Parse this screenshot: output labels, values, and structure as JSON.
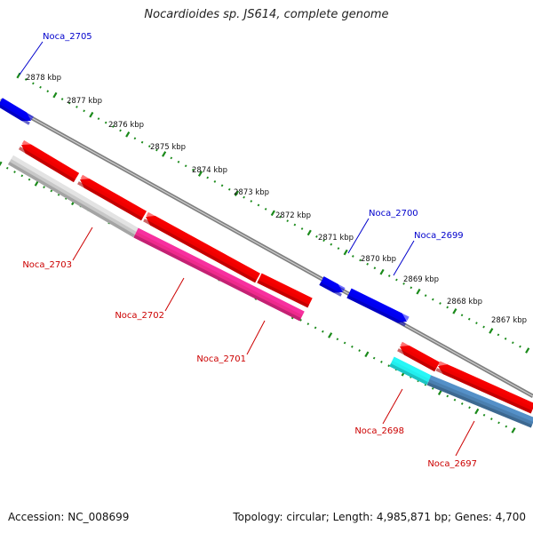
{
  "title": "Nocardioides sp. JS614, complete genome",
  "footer": {
    "accession": "Accession: NC_008699",
    "summary": "Topology: circular; Length: 4,985,871 bp; Genes: 4,700"
  },
  "colors": {
    "forward_gene": "#0000ee",
    "reverse_gene": "#ee0000",
    "backbone": "#808080",
    "tick_dots": "#1a8a1a",
    "label_forward": "#0000cc",
    "label_reverse": "#cc0000"
  },
  "ruler": {
    "units": "kbp",
    "ticks": [
      {
        "kbp": 2878,
        "label": "2878 kbp"
      },
      {
        "kbp": 2877,
        "label": "2877 kbp"
      },
      {
        "kbp": 2876,
        "label": "2876 kbp"
      },
      {
        "kbp": 2875,
        "label": "2875 kbp"
      },
      {
        "kbp": 2874,
        "label": "2874 kbp"
      },
      {
        "kbp": 2873,
        "label": "2873 kbp"
      },
      {
        "kbp": 2872,
        "label": "2872 kbp"
      },
      {
        "kbp": 2871,
        "label": "2871 kbp"
      },
      {
        "kbp": 2870,
        "label": "2870 kbp"
      },
      {
        "kbp": 2869,
        "label": "2869 kbp"
      },
      {
        "kbp": 2868,
        "label": "2868 kbp"
      },
      {
        "kbp": 2867,
        "label": "2867 kbp"
      }
    ]
  },
  "genes": [
    {
      "id": "Noca_2705",
      "strand": "forward",
      "color": "#0000ee",
      "labeled": true
    },
    {
      "id": "Noca_2700",
      "strand": "forward",
      "color": "#0000ee",
      "labeled": true
    },
    {
      "id": "Noca_2699",
      "strand": "forward",
      "color": "#0000ee",
      "labeled": true
    },
    {
      "id": "Noca_2703",
      "strand": "reverse",
      "color": "#ee0000",
      "labeled": true
    },
    {
      "id": "Noca_2702",
      "strand": "reverse",
      "color": "#ee0000",
      "labeled": true
    },
    {
      "id": "Noca_2701",
      "strand": "reverse",
      "color": "#ee0000",
      "labeled": true
    },
    {
      "id": "Noca_2698",
      "strand": "reverse",
      "color": "#ee0000",
      "labeled": true
    },
    {
      "id": "Noca_2697",
      "strand": "reverse",
      "color": "#ee0000",
      "labeled": true
    }
  ],
  "features": [
    {
      "gene": "Noca_2703",
      "color": "#c8c8c8"
    },
    {
      "gene": "Noca_2702",
      "color": "#ee2a8c"
    },
    {
      "gene": "Noca_2698",
      "color": "#22eeee"
    },
    {
      "gene": "Noca_2697",
      "color": "#4a7fb0"
    }
  ]
}
